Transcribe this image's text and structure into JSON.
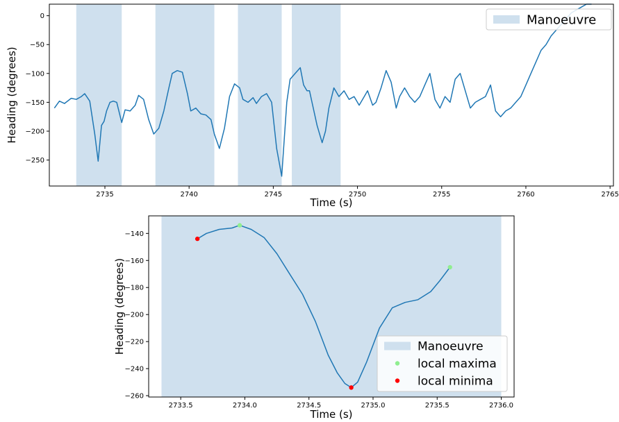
{
  "chart_data": [
    {
      "type": "line",
      "xlabel": "Time (s)",
      "ylabel": "Heading (degrees)",
      "xlim": [
        2731.7,
        2765.2
      ],
      "ylim": [
        -295,
        20
      ],
      "xticks": [
        2735,
        2740,
        2745,
        2750,
        2755,
        2760,
        2765
      ],
      "yticks": [
        0,
        -50,
        -100,
        -150,
        -200,
        -250
      ],
      "grid": false,
      "legend": {
        "placement": "top-right",
        "entries": [
          "Manoeuvre"
        ]
      },
      "colors": {
        "line": "#1f77b4",
        "span": "#cfe0ee"
      },
      "spans": [
        {
          "name": "Manoeuvre",
          "x0": 2733.3,
          "x1": 2736.0
        },
        {
          "x0": 2738.0,
          "x1": 2741.5
        },
        {
          "x0": 2742.9,
          "x1": 2745.5
        },
        {
          "x0": 2746.1,
          "x1": 2749.0
        }
      ],
      "series": [
        {
          "x": [
            2732.0,
            2732.3,
            2732.6,
            2733.0,
            2733.3,
            2733.6,
            2733.8,
            2734.1,
            2734.4,
            2734.6,
            2734.8,
            2734.95,
            2735.1,
            2735.3,
            2735.5,
            2735.7,
            2736.0,
            2736.2,
            2736.5,
            2736.8,
            2737.0,
            2737.3,
            2737.6,
            2737.9,
            2738.2,
            2738.5,
            2738.8,
            2739.0,
            2739.3,
            2739.6,
            2739.9,
            2740.1,
            2740.4,
            2740.7,
            2741.0,
            2741.3,
            2741.5,
            2741.8,
            2742.1,
            2742.4,
            2742.7,
            2743.0,
            2743.2,
            2743.5,
            2743.8,
            2744.0,
            2744.3,
            2744.6,
            2744.9,
            2745.2,
            2745.5,
            2745.8,
            2746.0,
            2746.3,
            2746.6,
            2746.8,
            2747.0,
            2747.15,
            2747.3,
            2747.6,
            2747.9,
            2748.1,
            2748.3,
            2748.6,
            2748.9,
            2749.2,
            2749.5,
            2749.8,
            2750.1,
            2750.4,
            2750.6,
            2750.9,
            2751.1,
            2751.4,
            2751.7,
            2752.0,
            2752.3,
            2752.5,
            2752.8,
            2753.1,
            2753.4,
            2753.7,
            2754.0,
            2754.3,
            2754.6,
            2754.9,
            2755.2,
            2755.5,
            2755.8,
            2756.1,
            2756.4,
            2756.7,
            2757.0,
            2757.3,
            2757.6,
            2757.9,
            2758.2,
            2758.5,
            2758.8,
            2759.1,
            2759.4,
            2759.7,
            2760.0,
            2760.3,
            2760.6,
            2760.9,
            2761.2,
            2761.5,
            2761.8,
            2762.1,
            2762.4,
            2762.7,
            2763.0,
            2763.3,
            2763.6,
            2763.9
          ],
          "y": [
            -160,
            -148,
            -152,
            -143,
            -145,
            -140,
            -135,
            -148,
            -205,
            -252,
            -190,
            -183,
            -165,
            -150,
            -148,
            -150,
            -185,
            -163,
            -165,
            -155,
            -138,
            -145,
            -180,
            -205,
            -195,
            -165,
            -125,
            -100,
            -95,
            -98,
            -135,
            -165,
            -160,
            -170,
            -172,
            -180,
            -205,
            -230,
            -195,
            -140,
            -118,
            -125,
            -145,
            -150,
            -142,
            -152,
            -140,
            -135,
            -150,
            -230,
            -278,
            -150,
            -110,
            -100,
            -90,
            -120,
            -130,
            -130,
            -150,
            -190,
            -220,
            -200,
            -160,
            -125,
            -140,
            -130,
            -145,
            -140,
            -155,
            -140,
            -130,
            -155,
            -150,
            -125,
            -95,
            -115,
            -160,
            -140,
            -125,
            -140,
            -150,
            -140,
            -120,
            -100,
            -145,
            -160,
            -140,
            -150,
            -110,
            -100,
            -130,
            -160,
            -150,
            -145,
            -140,
            -120,
            -165,
            -175,
            -165,
            -160,
            -150,
            -140,
            -120,
            -100,
            -80,
            -60,
            -50,
            -35,
            -25,
            -15,
            -5,
            5,
            10,
            15,
            20,
            20
          ]
        }
      ]
    },
    {
      "type": "line",
      "xlabel": "Time (s)",
      "ylabel": "Heading (degrees)",
      "xlim": [
        2733.25,
        2736.1
      ],
      "ylim": [
        -261,
        -127
      ],
      "xticks": [
        "2733.5",
        "2734.0",
        "2734.5",
        "2735.0",
        "2735.5",
        "2736.0"
      ],
      "yticks": [
        -140,
        -160,
        -180,
        -200,
        -220,
        -240,
        -260
      ],
      "grid": false,
      "legend": {
        "placement": "lower-right",
        "entries": [
          "Manoeuvre",
          "local maxima",
          "local minima"
        ]
      },
      "colors": {
        "line": "#1f77b4",
        "span": "#cfe0ee",
        "maxima": "#90ee90",
        "minima": "#ff0000"
      },
      "spans": [
        {
          "name": "Manoeuvre",
          "x0": 2733.35,
          "x1": 2736.0
        }
      ],
      "series": [
        {
          "x": [
            2733.63,
            2733.7,
            2733.8,
            2733.9,
            2733.96,
            2734.05,
            2734.15,
            2734.25,
            2734.35,
            2734.45,
            2734.55,
            2734.65,
            2734.72,
            2734.78,
            2734.83,
            2734.88,
            2734.95,
            2735.05,
            2735.15,
            2735.25,
            2735.35,
            2735.45,
            2735.52,
            2735.6
          ],
          "y": [
            -144,
            -140,
            -137,
            -136,
            -134,
            -137,
            -143,
            -155,
            -170,
            -185,
            -205,
            -230,
            -243,
            -251,
            -254,
            -250,
            -235,
            -210,
            -195,
            -191,
            -189,
            -183,
            -175,
            -165
          ]
        },
        {
          "name": "local maxima",
          "x": [
            2733.96,
            2735.6
          ],
          "y": [
            -134,
            -165
          ]
        },
        {
          "name": "local minima",
          "x": [
            2733.63,
            2734.83
          ],
          "y": [
            -144,
            -254
          ]
        }
      ]
    }
  ]
}
